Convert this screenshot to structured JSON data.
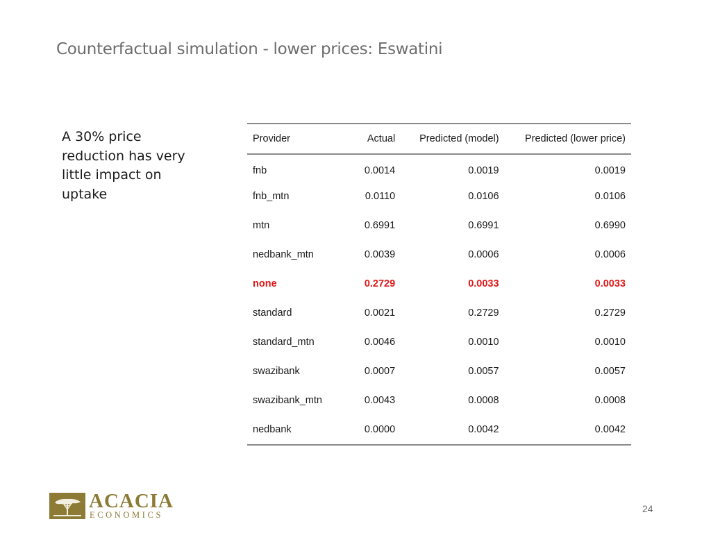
{
  "slide": {
    "title": "Counterfactual simulation - lower prices: Eswatini",
    "bullet_text": "A 30% price reduction has very little impact on uptake",
    "page_number": "24"
  },
  "logo": {
    "name": "ACACIA",
    "subtitle": "ECONOMICS",
    "color": "#8c7a35"
  },
  "table": {
    "headers": [
      "Provider",
      "Actual",
      "Predicted (model)",
      "Predicted (lower price)"
    ],
    "highlight_color": "#e01818",
    "rows": [
      {
        "provider": "fnb",
        "actual": "0.0014",
        "predicted_model": "0.0019",
        "predicted_lower": "0.0019"
      },
      {
        "provider": "fnb_mtn",
        "actual": "0.0110",
        "predicted_model": "0.0106",
        "predicted_lower": "0.0106"
      },
      {
        "provider": "mtn",
        "actual": "0.6991",
        "predicted_model": "0.6991",
        "predicted_lower": "0.6990"
      },
      {
        "provider": "nedbank_mtn",
        "actual": "0.0039",
        "predicted_model": "0.0006",
        "predicted_lower": "0.0006"
      },
      {
        "provider": "none",
        "actual": "0.2729",
        "predicted_model": "0.0033",
        "predicted_lower": "0.0033"
      },
      {
        "provider": "standard",
        "actual": "0.0021",
        "predicted_model": "0.2729",
        "predicted_lower": "0.2729"
      },
      {
        "provider": "standard_mtn",
        "actual": "0.0046",
        "predicted_model": "0.0010",
        "predicted_lower": "0.0010"
      },
      {
        "provider": "swazibank",
        "actual": "0.0007",
        "predicted_model": "0.0057",
        "predicted_lower": "0.0057"
      },
      {
        "provider": "swazibank_mtn",
        "actual": "0.0043",
        "predicted_model": "0.0008",
        "predicted_lower": "0.0008"
      },
      {
        "provider": "nedbank",
        "actual": "0.0000",
        "predicted_model": "0.0042",
        "predicted_lower": "0.0042"
      }
    ]
  }
}
